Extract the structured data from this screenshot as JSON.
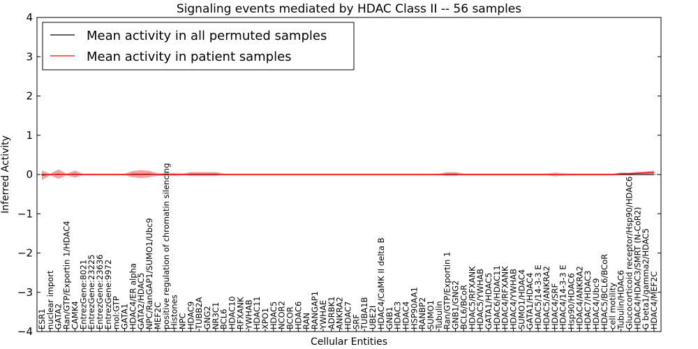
{
  "chart_data": {
    "type": "line",
    "title": "Signaling events mediated by HDAC Class II -- 56 samples",
    "xlabel": "Cellular Entities",
    "ylabel": "Inferred Activity",
    "ylim": [
      -4,
      4
    ],
    "yticks": [
      4,
      3,
      2,
      1,
      0,
      -1,
      -2,
      -3,
      -4
    ],
    "ytick_labels": [
      "4",
      "3",
      "2",
      "1",
      "0",
      "−1",
      "−2",
      "−3",
      "−4"
    ],
    "legend": {
      "placement": "top-left",
      "entries": [
        {
          "label": "Mean activity in all permuted samples",
          "color": "#000000"
        },
        {
          "label": "Mean activity in patient samples",
          "color": "#ff0000"
        }
      ]
    },
    "band_color": "#f08080",
    "permuted_band_color": "#c8c8c8",
    "categories": [
      "ESR1",
      "nuclear import",
      "GATA2",
      "Ran/GTP/Exportin 1/HDAC4",
      "CAMK4",
      "EntrezGene:8021",
      "EntrezGene:23225",
      "EntrezGene:23636",
      "EntrezGene:9972",
      "mol:GTP",
      "GATA1",
      "HDAC4/ER alpha",
      "GATA2/HDAC5",
      "NPC/RanGAP1/SUMO1/Ubc9",
      "MEF2C",
      "positive regulation of chromatin silencing",
      "Histones",
      "NPC",
      "HDAC9",
      "TUBB2A",
      "GNG2",
      "NR3C1",
      "BCL6",
      "HDAC10",
      "RFXANK",
      "YWHAB",
      "HDAC11",
      "XPO1",
      "HDAC5",
      "NCOR2",
      "BCOR",
      "HDAC6",
      "RAN",
      "RANGAP1",
      "YWHAE",
      "ADRBK1",
      "ANKRA2",
      "HDAC7",
      "SRF",
      "TUBA1B",
      "UBE2I",
      "HDAC4/CaMK II delta B",
      "GNB1",
      "HDAC3",
      "HDAC4",
      "HSP90AA1",
      "RANBP2",
      "SUMO1",
      "Tubulin",
      "Ran/GTP/Exportin 1",
      "GNB1/GNG2",
      "BCL6/BCoR",
      "HDAC5/RFXANK",
      "HDAC5/YWHAB",
      "GATA1/HDAC5",
      "HDAC6/HDAC11",
      "HDAC4/RFXANK",
      "HDAC4/YWHAB",
      "SUMO1/HDAC4",
      "GATA1/HDAC4",
      "HDAC5/14-3-3 E",
      "HDAC5/ANKRA2",
      "HDAC4/SRF",
      "HDAC4/14-3-3 E",
      "Hsp90/HDAC6",
      "HDAC4/ANKRA2",
      "HDAC7/HDAC3",
      "HDAC4/Ubc9",
      "HDAC5/BCL6/BCoR",
      "cell motility",
      "Tubulin/HDAC6",
      "Glucocorticoid receptor/Hsp90/HDAC6",
      "HDAC4/HDAC3/SMRT (N-CoR2)",
      "G beta1/gamma2/HDAC5",
      "HDAC4/MEF2C"
    ],
    "series": [
      {
        "name": "Mean activity in all permuted samples",
        "color": "#000000",
        "values": [
          0,
          0,
          0,
          0,
          0,
          0,
          0,
          0,
          0,
          0,
          0,
          0,
          0,
          0,
          0,
          0,
          0,
          0,
          0,
          0,
          0,
          0,
          0,
          0,
          0,
          0,
          0,
          0,
          0,
          0,
          0,
          0,
          0,
          0,
          0,
          0,
          0,
          0,
          0,
          0,
          0,
          0,
          0,
          0,
          0,
          0,
          0,
          0,
          0,
          0,
          0,
          0,
          0,
          0,
          0,
          0,
          0,
          0,
          0,
          0,
          0,
          0,
          0,
          0,
          0,
          0,
          0,
          0,
          0,
          0,
          0,
          0,
          0,
          0,
          0
        ],
        "spread": [
          0.03,
          0.03,
          0.03,
          0.03,
          0.03,
          0.03,
          0.03,
          0.03,
          0.03,
          0.03,
          0.03,
          0.03,
          0.03,
          0.03,
          0.03,
          0.05,
          0.05,
          0.04,
          0.03,
          0.03,
          0.03,
          0.03,
          0.03,
          0.03,
          0.03,
          0.03,
          0.03,
          0.03,
          0.03,
          0.03,
          0.03,
          0.03,
          0.03,
          0.03,
          0.03,
          0.03,
          0.03,
          0.03,
          0.03,
          0.03,
          0.03,
          0.03,
          0.03,
          0.03,
          0.03,
          0.03,
          0.03,
          0.03,
          0.03,
          0.03,
          0.04,
          0.03,
          0.03,
          0.03,
          0.03,
          0.03,
          0.03,
          0.03,
          0.03,
          0.03,
          0.03,
          0.03,
          0.04,
          0.03,
          0.03,
          0.03,
          0.03,
          0.03,
          0.03,
          0.03,
          0.03,
          0.03,
          0.03,
          0.03,
          0.03
        ]
      },
      {
        "name": "Mean activity in patient samples",
        "color": "#ff0000",
        "values": [
          -0.02,
          0,
          0.01,
          0,
          0.01,
          0,
          0,
          0,
          0,
          0,
          0,
          0.01,
          0.01,
          0.01,
          0,
          0,
          0,
          0,
          0.01,
          0.01,
          0.01,
          0.01,
          0,
          0,
          0,
          0,
          0,
          0,
          0,
          0,
          0,
          0,
          0,
          0,
          0,
          0,
          0,
          0,
          0,
          0,
          0,
          0,
          0,
          0,
          0,
          0,
          0,
          0,
          0,
          0.01,
          0.01,
          0,
          0,
          0,
          0,
          0,
          0,
          0,
          0,
          0,
          0,
          0,
          0,
          0,
          0,
          0,
          0,
          0,
          0,
          0,
          0.02,
          0.02,
          0.03,
          0.04,
          0.05
        ],
        "spread": [
          0.12,
          0.02,
          0.12,
          0.02,
          0.09,
          0.01,
          0.01,
          0.01,
          0.01,
          0.01,
          0.02,
          0.08,
          0.1,
          0.08,
          0.03,
          0.04,
          0.03,
          0.02,
          0.05,
          0.05,
          0.05,
          0.05,
          0.02,
          0.01,
          0.01,
          0.01,
          0.01,
          0.01,
          0.01,
          0.01,
          0.01,
          0.01,
          0.01,
          0.01,
          0.01,
          0.01,
          0.01,
          0.01,
          0.01,
          0.01,
          0.01,
          0.01,
          0.01,
          0.01,
          0.01,
          0.01,
          0.01,
          0.01,
          0.02,
          0.05,
          0.05,
          0.02,
          0.02,
          0.02,
          0.02,
          0.02,
          0.02,
          0.02,
          0.02,
          0.02,
          0.02,
          0.02,
          0.05,
          0.03,
          0.02,
          0.02,
          0.02,
          0.02,
          0.02,
          0.02,
          0.03,
          0.03,
          0.04,
          0.04,
          0.05
        ]
      }
    ]
  }
}
